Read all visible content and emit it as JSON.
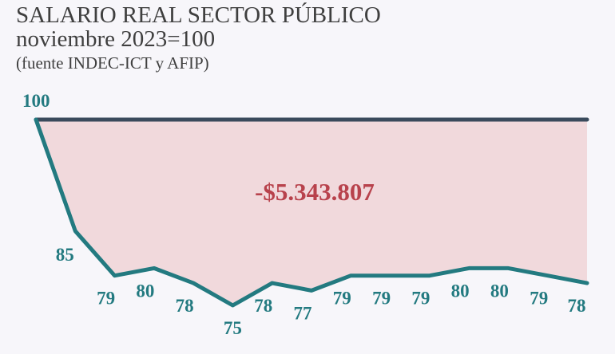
{
  "title": "SALARIO REAL SECTOR PÚBLICO",
  "subtitle": "noviembre 2023=100",
  "source": "(fuente INDEC-ICT y AFIP)",
  "colors": {
    "series": "#237a80",
    "baseline": "#3a4a5c",
    "gap_fill": "#f1d9dc",
    "annotation": "#b8424c",
    "title": "#3f3f3f",
    "background": "#f7f6fa"
  },
  "chart_data": {
    "type": "line",
    "title": "SALARIO REAL SECTOR PÚBLICO",
    "subtitle": "noviembre 2023=100",
    "xlabel": "",
    "ylabel": "",
    "grid": false,
    "legend": "none",
    "baseline": {
      "value": 100,
      "label": "100"
    },
    "series": [
      {
        "values": [
          100,
          85,
          79,
          80,
          78,
          75,
          78,
          77,
          79,
          79,
          79,
          80,
          80,
          79,
          78
        ],
        "labels": [
          "100",
          "85",
          "79",
          "80",
          "78",
          "75",
          "78",
          "77",
          "79",
          "79",
          "79",
          "80",
          "80",
          "79",
          "78"
        ]
      }
    ],
    "annotations": [
      {
        "text": "-$5.343.807",
        "position": "center"
      }
    ]
  }
}
